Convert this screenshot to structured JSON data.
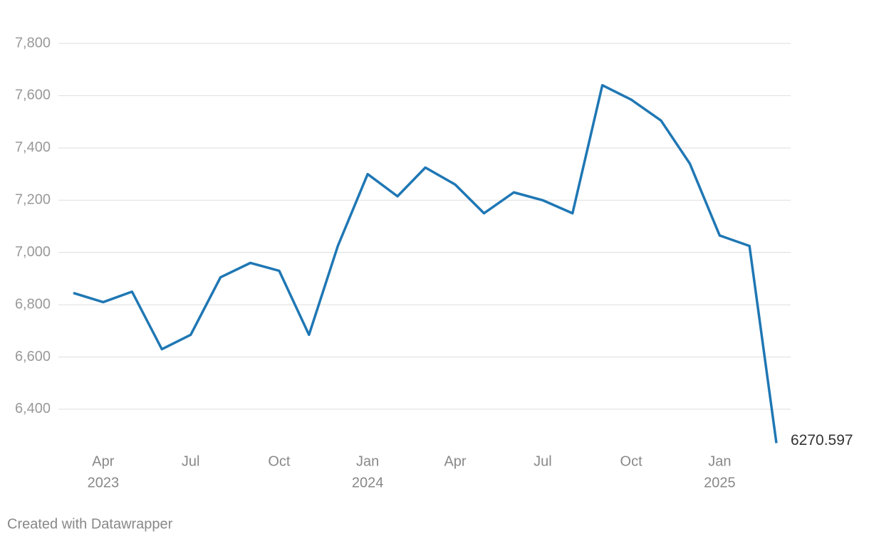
{
  "chart_data": {
    "type": "line",
    "x": [
      "2023-02",
      "2023-03",
      "2023-04",
      "2023-05",
      "2023-06",
      "2023-07",
      "2023-08",
      "2023-09",
      "2023-10",
      "2023-11",
      "2023-12",
      "2024-01",
      "2024-02",
      "2024-03",
      "2024-04",
      "2024-05",
      "2024-06",
      "2024-07",
      "2024-08",
      "2024-09",
      "2024-10",
      "2024-11",
      "2024-12",
      "2025-01",
      "2025-02"
    ],
    "series": [
      {
        "color": "#1f77b4",
        "values": [
          6845,
          6810,
          6850,
          6630,
          6685,
          6905,
          6960,
          6930,
          6685,
          7025,
          7300,
          7215,
          7325,
          7260,
          7150,
          7230,
          7200,
          7150,
          7640,
          7585,
          7505,
          7340,
          7065,
          7025,
          6270.597
        ]
      }
    ],
    "ylim": [
      6250,
      7900
    ],
    "yticks": [
      {
        "value": 6400,
        "label": "6,400"
      },
      {
        "value": 6600,
        "label": "6,600"
      },
      {
        "value": 6800,
        "label": "6,800"
      },
      {
        "value": 7000,
        "label": "7,000"
      },
      {
        "value": 7200,
        "label": "7,200"
      },
      {
        "value": 7400,
        "label": "7,400"
      },
      {
        "value": 7600,
        "label": "7,600"
      },
      {
        "value": 7800,
        "label": "7,800"
      }
    ],
    "xlim": [
      "2023-02",
      "2025-02"
    ],
    "xticks": [
      {
        "value": "2023-04",
        "label": "Apr",
        "year": "2023"
      },
      {
        "value": "2023-07",
        "label": "Jul"
      },
      {
        "value": "2023-10",
        "label": "Oct"
      },
      {
        "value": "2024-01",
        "label": "Jan",
        "year": "2024"
      },
      {
        "value": "2024-04",
        "label": "Apr"
      },
      {
        "value": "2024-07",
        "label": "Jul"
      },
      {
        "value": "2024-10",
        "label": "Oct"
      },
      {
        "value": "2025-01",
        "label": "Jan",
        "year": "2025"
      }
    ],
    "grid": true,
    "credit": "Created with Datawrapper"
  }
}
